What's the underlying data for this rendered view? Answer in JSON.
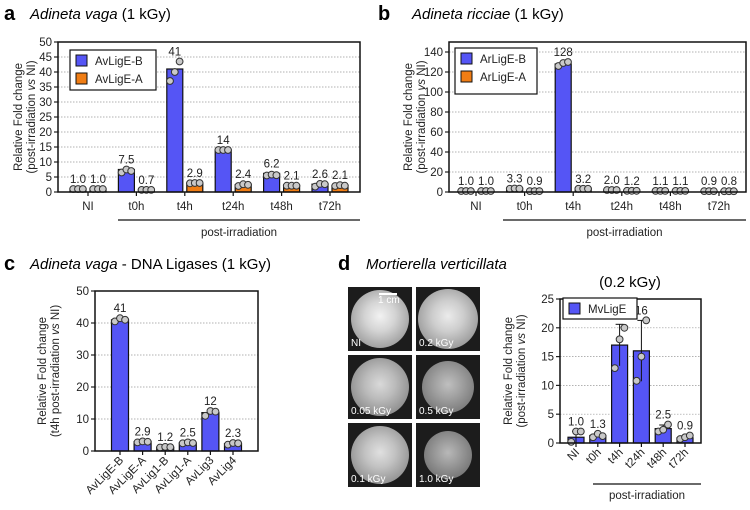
{
  "panels": {
    "a": {
      "letter": "a",
      "species": "Adineta vaga",
      "dose": " (1 kGy)"
    },
    "b": {
      "letter": "b",
      "species": "Adineta ricciae",
      "dose": " (1 kGy)"
    },
    "c": {
      "letter": "c",
      "species": "Adineta vaga",
      "dose": " - DNA Ligases (1 kGy)"
    },
    "d": {
      "letter": "d",
      "species": "Mortierella verticillata",
      "dose": "(0.2 kGy)"
    }
  },
  "photos": {
    "scale_label": "1 cm",
    "tiles": [
      {
        "label": "NI"
      },
      {
        "label": "0.2 kGy"
      },
      {
        "label": "0.05 kGy"
      },
      {
        "label": "0.5 kGy"
      },
      {
        "label": "0.1 kGy"
      },
      {
        "label": "1.0 kGy"
      }
    ]
  },
  "chart_data": [
    {
      "id": "a",
      "type": "bar",
      "title": "Adineta vaga (1 kGy)",
      "ylabel": [
        "Relative Fold change",
        "(post-irradiation ",
        "vs",
        " NI)"
      ],
      "ylim": [
        0,
        50
      ],
      "yticks": [
        0,
        5,
        10,
        15,
        20,
        25,
        30,
        35,
        40,
        45,
        50
      ],
      "categories": [
        "NI",
        "t0h",
        "t4h",
        "t24h",
        "t48h",
        "t72h"
      ],
      "group_label": "post-irradiation",
      "legend": "top-left",
      "series": [
        {
          "name": "AvLigE-B",
          "color": "#5555f5",
          "values": [
            1.0,
            7.5,
            41,
            14,
            6.2,
            2.6
          ],
          "labels": [
            "1.0",
            "7.5",
            "41",
            "14",
            "6.2",
            "2.6"
          ],
          "points": [
            [
              1,
              1,
              1
            ],
            [
              6.5,
              7.5,
              7
            ],
            [
              37,
              40,
              43.5
            ],
            [
              14,
              14,
              14
            ],
            [
              5.5,
              5.8,
              5.6
            ],
            [
              1.8,
              2.7,
              2.6
            ]
          ]
        },
        {
          "name": "AvLigE-A",
          "color": "#f07d14",
          "values": [
            1.0,
            0.7,
            2.9,
            2.4,
            2.1,
            2.1
          ],
          "labels": [
            "1.0",
            "0.7",
            "2.9",
            "2.4",
            "2.1",
            "2.1"
          ],
          "points": [
            [
              1,
              1,
              1
            ],
            [
              0.7,
              0.7,
              0.7
            ],
            [
              2.9,
              3,
              3
            ],
            [
              2,
              2.6,
              2.4
            ],
            [
              2.1,
              2.1,
              2.1
            ],
            [
              2,
              2.3,
              2.1
            ]
          ]
        }
      ]
    },
    {
      "id": "b",
      "type": "bar",
      "title": "Adineta ricciae (1 kGy)",
      "ylabel": [
        "Relative Fold change",
        "(post-irradiation ",
        "vs",
        " NI)"
      ],
      "ylim": [
        0,
        150
      ],
      "yticks": [
        0,
        20,
        40,
        60,
        80,
        100,
        120,
        140
      ],
      "categories": [
        "NI",
        "t0h",
        "t4h",
        "t24h",
        "t48h",
        "t72h"
      ],
      "group_label": "post-irradiation",
      "legend": "top-left",
      "series": [
        {
          "name": "ArLigE-B",
          "color": "#5555f5",
          "values": [
            1.0,
            3.3,
            128,
            2.0,
            1.1,
            0.9
          ],
          "labels": [
            "1.0",
            "3.3",
            "128",
            "2.0",
            "1.1",
            "0.9"
          ],
          "points": [
            [
              1,
              1,
              1
            ],
            [
              3.2,
              3.5,
              3.3
            ],
            [
              126,
              129,
              130
            ],
            [
              2,
              2,
              2
            ],
            [
              1.1,
              1.1,
              1.1
            ],
            [
              0.9,
              0.9,
              0.9
            ]
          ]
        },
        {
          "name": "ArLigE-A",
          "color": "#f07d14",
          "values": [
            1.0,
            0.9,
            3.2,
            1.2,
            1.1,
            0.8
          ],
          "labels": [
            "1.0",
            "0.9",
            "3.2",
            "1.2",
            "1.1",
            "0.8"
          ],
          "points": [
            [
              1,
              1,
              1
            ],
            [
              0.9,
              0.9,
              0.9
            ],
            [
              3.2,
              3.2,
              3.2
            ],
            [
              1.2,
              1.2,
              1.2
            ],
            [
              1.1,
              1.1,
              1.1
            ],
            [
              0.8,
              0.8,
              0.8
            ]
          ]
        }
      ]
    },
    {
      "id": "c",
      "type": "bar",
      "title": "Adineta vaga - DNA Ligases (1 kGy)",
      "ylabel": [
        "Relative Fold change",
        "(t4h post-irradiation ",
        "vs",
        " NI)"
      ],
      "ylim": [
        0,
        50
      ],
      "yticks": [
        0,
        10,
        20,
        30,
        40,
        50
      ],
      "categories": [
        "AvLigE-B",
        "AvLigE-A",
        "AvLig1-B",
        "AvLig1-A",
        "AvLig3",
        "AvLig4"
      ],
      "series": [
        {
          "name": "t4h",
          "color": "#5555f5",
          "values": [
            41,
            2.9,
            1.2,
            2.5,
            12,
            2.3
          ],
          "labels": [
            "41",
            "2.9",
            "1.2",
            "2.5",
            "12",
            "2.3"
          ],
          "points": [
            [
              40.5,
              41.5,
              41
            ],
            [
              2.7,
              3,
              2.9
            ],
            [
              1.1,
              1.3,
              1.2
            ],
            [
              2.4,
              2.7,
              2.5
            ],
            [
              11,
              12.5,
              12.3
            ],
            [
              2,
              2.5,
              2.4
            ]
          ]
        }
      ]
    },
    {
      "id": "d",
      "type": "bar",
      "title": "(0.2 kGy)",
      "ylabel": [
        "Relative Fold change",
        "(post-irradiation ",
        "vs",
        " NI)"
      ],
      "ylim": [
        0,
        25
      ],
      "yticks": [
        0,
        5,
        10,
        15,
        20,
        25
      ],
      "categories": [
        "NI",
        "t0h",
        "t4h",
        "t24h",
        "t48h",
        "t72h"
      ],
      "group_label": "post-irradiation",
      "legend": "top-left",
      "series": [
        {
          "name": "MvLigE",
          "color": "#5555f5",
          "values": [
            1.0,
            1.3,
            17,
            16,
            2.5,
            0.9
          ],
          "labels": [
            "1.0",
            "1.3",
            "17",
            "16",
            "2.5",
            "0.9"
          ],
          "points": [
            [
              0.2,
              2,
              2
            ],
            [
              1,
              1.6,
              1.2
            ],
            [
              13,
              18,
              20
            ],
            [
              10.8,
              15,
              21.3
            ],
            [
              2,
              2.3,
              3.2
            ],
            [
              0.7,
              1,
              1.3
            ]
          ],
          "error_bars": true
        }
      ]
    }
  ]
}
